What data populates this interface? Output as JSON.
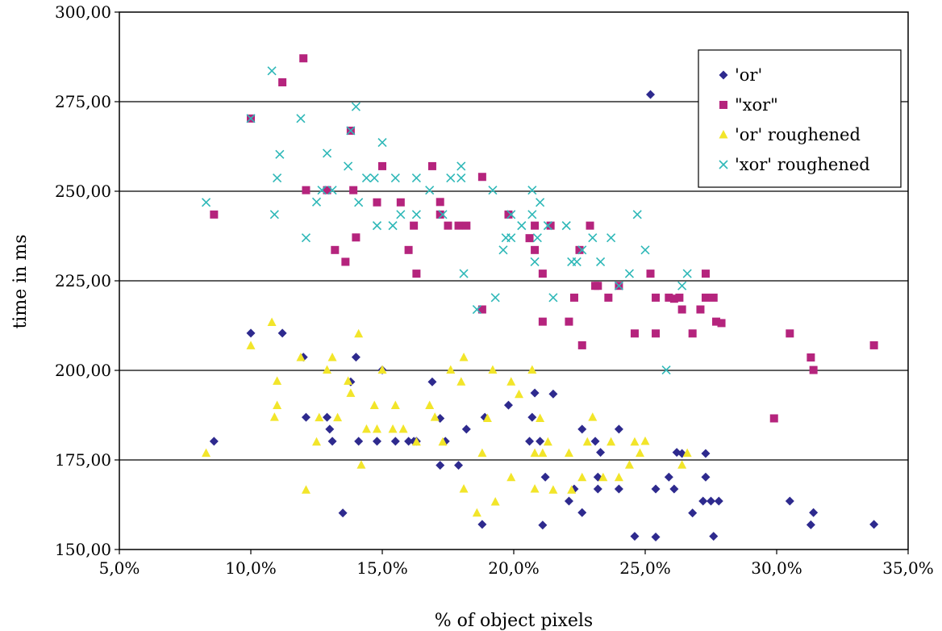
{
  "chart_data": {
    "type": "scatter",
    "title": "",
    "xlabel": "% of object pixels",
    "ylabel": "time in ms",
    "xlim": [
      0.05,
      0.35
    ],
    "ylim": [
      150,
      300
    ],
    "x_ticks": [
      "5,0%",
      "10,0%",
      "15,0%",
      "20,0%",
      "25,0%",
      "30,0%",
      "35,0%"
    ],
    "y_ticks": [
      "150,00",
      "175,00",
      "200,00",
      "225,00",
      "250,00",
      "275,00",
      "300,00"
    ],
    "grid": {
      "horizontal": true,
      "vertical": false
    },
    "legend_position": "top-right",
    "series": [
      {
        "name": "'or'",
        "marker": "diamond",
        "color": "#2E2A8E",
        "points": [
          [
            0.086,
            180.2
          ],
          [
            0.1,
            210.4
          ],
          [
            0.112,
            210.4
          ],
          [
            0.12,
            203.7
          ],
          [
            0.121,
            186.9
          ],
          [
            0.129,
            186.9
          ],
          [
            0.13,
            183.6
          ],
          [
            0.131,
            180.2
          ],
          [
            0.135,
            160.2
          ],
          [
            0.138,
            196.8
          ],
          [
            0.14,
            203.7
          ],
          [
            0.141,
            180.2
          ],
          [
            0.148,
            180.2
          ],
          [
            0.15,
            200.1
          ],
          [
            0.155,
            180.2
          ],
          [
            0.16,
            180.2
          ],
          [
            0.162,
            180.2
          ],
          [
            0.163,
            180.2
          ],
          [
            0.169,
            196.8
          ],
          [
            0.172,
            173.5
          ],
          [
            0.172,
            186.6
          ],
          [
            0.174,
            180.2
          ],
          [
            0.179,
            173.5
          ],
          [
            0.182,
            183.6
          ],
          [
            0.188,
            157.0
          ],
          [
            0.189,
            186.9
          ],
          [
            0.198,
            190.3
          ],
          [
            0.206,
            180.2
          ],
          [
            0.207,
            186.9
          ],
          [
            0.208,
            193.7
          ],
          [
            0.21,
            180.2
          ],
          [
            0.211,
            156.8
          ],
          [
            0.212,
            170.2
          ],
          [
            0.215,
            193.4
          ],
          [
            0.221,
            163.5
          ],
          [
            0.223,
            166.9
          ],
          [
            0.226,
            183.6
          ],
          [
            0.226,
            160.3
          ],
          [
            0.231,
            180.2
          ],
          [
            0.232,
            170.2
          ],
          [
            0.232,
            166.9
          ],
          [
            0.233,
            177.1
          ],
          [
            0.24,
            166.9
          ],
          [
            0.24,
            183.6
          ],
          [
            0.246,
            153.7
          ],
          [
            0.252,
            277.0
          ],
          [
            0.254,
            153.5
          ],
          [
            0.254,
            166.9
          ],
          [
            0.259,
            170.2
          ],
          [
            0.261,
            166.9
          ],
          [
            0.262,
            177.1
          ],
          [
            0.264,
            176.8
          ],
          [
            0.268,
            160.2
          ],
          [
            0.272,
            163.5
          ],
          [
            0.273,
            170.2
          ],
          [
            0.273,
            176.8
          ],
          [
            0.275,
            163.5
          ],
          [
            0.276,
            153.7
          ],
          [
            0.278,
            163.5
          ],
          [
            0.305,
            163.5
          ],
          [
            0.313,
            156.9
          ],
          [
            0.314,
            160.3
          ],
          [
            0.337,
            157.0
          ]
        ]
      },
      {
        "name": "\"xor\"",
        "marker": "square",
        "color": "#B5247D",
        "points": [
          [
            0.086,
            243.5
          ],
          [
            0.1,
            270.3
          ],
          [
            0.112,
            280.4
          ],
          [
            0.12,
            287.1
          ],
          [
            0.121,
            250.3
          ],
          [
            0.129,
            250.3
          ],
          [
            0.132,
            233.6
          ],
          [
            0.136,
            230.3
          ],
          [
            0.138,
            266.9
          ],
          [
            0.139,
            250.3
          ],
          [
            0.14,
            237.1
          ],
          [
            0.148,
            246.9
          ],
          [
            0.15,
            257.0
          ],
          [
            0.157,
            246.9
          ],
          [
            0.16,
            233.6
          ],
          [
            0.162,
            240.4
          ],
          [
            0.163,
            227.0
          ],
          [
            0.169,
            257.0
          ],
          [
            0.172,
            243.5
          ],
          [
            0.172,
            247.0
          ],
          [
            0.175,
            240.4
          ],
          [
            0.179,
            240.4
          ],
          [
            0.182,
            240.4
          ],
          [
            0.188,
            217.0
          ],
          [
            0.188,
            254.0
          ],
          [
            0.198,
            243.5
          ],
          [
            0.206,
            236.9
          ],
          [
            0.208,
            240.4
          ],
          [
            0.208,
            233.6
          ],
          [
            0.211,
            227.0
          ],
          [
            0.211,
            213.6
          ],
          [
            0.214,
            240.4
          ],
          [
            0.221,
            213.6
          ],
          [
            0.223,
            220.3
          ],
          [
            0.225,
            233.6
          ],
          [
            0.226,
            207.0
          ],
          [
            0.229,
            240.4
          ],
          [
            0.231,
            223.6
          ],
          [
            0.232,
            223.6
          ],
          [
            0.236,
            220.3
          ],
          [
            0.24,
            223.6
          ],
          [
            0.246,
            210.3
          ],
          [
            0.252,
            227.0
          ],
          [
            0.254,
            220.3
          ],
          [
            0.254,
            210.3
          ],
          [
            0.259,
            220.3
          ],
          [
            0.261,
            220.0
          ],
          [
            0.263,
            220.3
          ],
          [
            0.264,
            217.0
          ],
          [
            0.268,
            210.3
          ],
          [
            0.271,
            217.0
          ],
          [
            0.273,
            220.3
          ],
          [
            0.273,
            227.0
          ],
          [
            0.276,
            220.3
          ],
          [
            0.277,
            213.6
          ],
          [
            0.279,
            213.2
          ],
          [
            0.299,
            186.6
          ],
          [
            0.305,
            210.3
          ],
          [
            0.313,
            203.6
          ],
          [
            0.314,
            200.1
          ],
          [
            0.337,
            207.0
          ]
        ]
      },
      {
        "name": "'or' roughened",
        "marker": "triangle",
        "color": "#F2E52A",
        "points": [
          [
            0.083,
            176.9
          ],
          [
            0.1,
            206.9
          ],
          [
            0.108,
            213.4
          ],
          [
            0.109,
            186.9
          ],
          [
            0.11,
            197.0
          ],
          [
            0.11,
            190.2
          ],
          [
            0.119,
            203.6
          ],
          [
            0.121,
            166.6
          ],
          [
            0.125,
            180.0
          ],
          [
            0.126,
            186.8
          ],
          [
            0.129,
            200.1
          ],
          [
            0.131,
            203.6
          ],
          [
            0.133,
            186.8
          ],
          [
            0.137,
            197.0
          ],
          [
            0.138,
            193.6
          ],
          [
            0.141,
            210.2
          ],
          [
            0.142,
            173.6
          ],
          [
            0.144,
            183.6
          ],
          [
            0.147,
            190.2
          ],
          [
            0.148,
            183.6
          ],
          [
            0.15,
            200.1
          ],
          [
            0.154,
            183.6
          ],
          [
            0.155,
            190.2
          ],
          [
            0.158,
            183.6
          ],
          [
            0.163,
            180.0
          ],
          [
            0.168,
            190.2
          ],
          [
            0.17,
            186.9
          ],
          [
            0.173,
            180.0
          ],
          [
            0.176,
            200.1
          ],
          [
            0.18,
            196.8
          ],
          [
            0.181,
            203.6
          ],
          [
            0.181,
            166.9
          ],
          [
            0.186,
            160.2
          ],
          [
            0.188,
            176.9
          ],
          [
            0.19,
            186.6
          ],
          [
            0.192,
            200.1
          ],
          [
            0.193,
            163.3
          ],
          [
            0.199,
            196.8
          ],
          [
            0.199,
            170.1
          ],
          [
            0.202,
            193.3
          ],
          [
            0.207,
            200.1
          ],
          [
            0.208,
            166.9
          ],
          [
            0.208,
            176.9
          ],
          [
            0.21,
            186.6
          ],
          [
            0.211,
            176.9
          ],
          [
            0.213,
            180.0
          ],
          [
            0.215,
            166.6
          ],
          [
            0.221,
            176.9
          ],
          [
            0.222,
            166.6
          ],
          [
            0.226,
            170.1
          ],
          [
            0.228,
            180.0
          ],
          [
            0.23,
            186.9
          ],
          [
            0.234,
            170.1
          ],
          [
            0.237,
            180.0
          ],
          [
            0.24,
            170.1
          ],
          [
            0.244,
            173.6
          ],
          [
            0.246,
            180.0
          ],
          [
            0.248,
            176.9
          ],
          [
            0.25,
            180.2
          ],
          [
            0.264,
            173.6
          ],
          [
            0.266,
            176.9
          ]
        ]
      },
      {
        "name": "'xor' roughened",
        "marker": "x",
        "color": "#2FB8B8",
        "points": [
          [
            0.083,
            246.9
          ],
          [
            0.1,
            270.3
          ],
          [
            0.108,
            283.6
          ],
          [
            0.109,
            243.5
          ],
          [
            0.11,
            253.7
          ],
          [
            0.111,
            260.3
          ],
          [
            0.119,
            270.3
          ],
          [
            0.121,
            237.0
          ],
          [
            0.125,
            247.0
          ],
          [
            0.127,
            250.3
          ],
          [
            0.129,
            260.6
          ],
          [
            0.131,
            250.3
          ],
          [
            0.137,
            257.0
          ],
          [
            0.138,
            266.9
          ],
          [
            0.14,
            273.6
          ],
          [
            0.141,
            246.9
          ],
          [
            0.144,
            253.7
          ],
          [
            0.147,
            253.7
          ],
          [
            0.148,
            240.4
          ],
          [
            0.15,
            263.6
          ],
          [
            0.154,
            240.4
          ],
          [
            0.155,
            253.7
          ],
          [
            0.157,
            243.5
          ],
          [
            0.163,
            253.7
          ],
          [
            0.163,
            243.5
          ],
          [
            0.168,
            250.3
          ],
          [
            0.173,
            243.5
          ],
          [
            0.176,
            253.7
          ],
          [
            0.18,
            253.7
          ],
          [
            0.18,
            257.0
          ],
          [
            0.181,
            227.0
          ],
          [
            0.186,
            217.0
          ],
          [
            0.192,
            250.3
          ],
          [
            0.193,
            220.3
          ],
          [
            0.196,
            233.6
          ],
          [
            0.197,
            237.0
          ],
          [
            0.199,
            243.5
          ],
          [
            0.199,
            237.0
          ],
          [
            0.203,
            240.4
          ],
          [
            0.207,
            243.5
          ],
          [
            0.207,
            250.3
          ],
          [
            0.208,
            230.3
          ],
          [
            0.209,
            237.0
          ],
          [
            0.21,
            246.9
          ],
          [
            0.213,
            240.4
          ],
          [
            0.215,
            220.3
          ],
          [
            0.22,
            240.4
          ],
          [
            0.222,
            230.3
          ],
          [
            0.224,
            230.3
          ],
          [
            0.226,
            233.6
          ],
          [
            0.23,
            237.0
          ],
          [
            0.233,
            230.3
          ],
          [
            0.237,
            237.0
          ],
          [
            0.24,
            223.6
          ],
          [
            0.244,
            227.0
          ],
          [
            0.247,
            243.5
          ],
          [
            0.25,
            233.6
          ],
          [
            0.258,
            200.1
          ],
          [
            0.264,
            223.6
          ],
          [
            0.266,
            227.0
          ]
        ]
      }
    ]
  }
}
